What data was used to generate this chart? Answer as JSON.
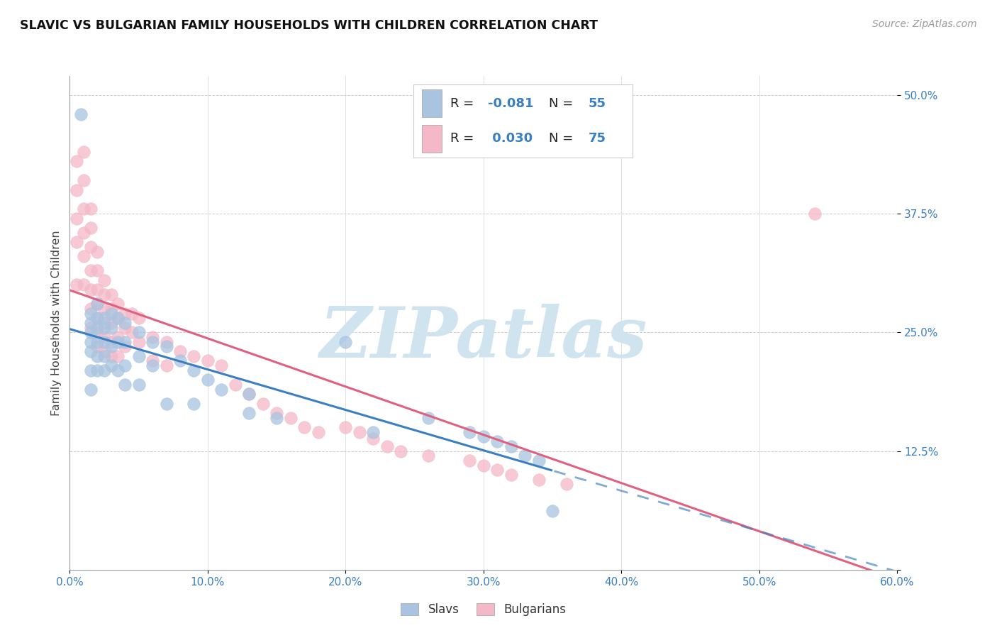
{
  "title": "SLAVIC VS BULGARIAN FAMILY HOUSEHOLDS WITH CHILDREN CORRELATION CHART",
  "source": "Source: ZipAtlas.com",
  "ylabel": "Family Households with Children",
  "xlim": [
    0.0,
    0.6
  ],
  "ylim": [
    0.0,
    0.52
  ],
  "slavs_color": "#a8c4e0",
  "bulgarians_color": "#f4b8c8",
  "slavs_line_color": "#3a7fc1",
  "bulgarians_line_color": "#e06080",
  "watermark_text": "ZIPatlas",
  "watermark_color": "#d0e4f0",
  "slavs_R": -0.081,
  "bulgarians_R": 0.03,
  "slavs_N": 55,
  "bulgarians_N": 75,
  "slavs_x": [
    0.008,
    0.015,
    0.015,
    0.015,
    0.015,
    0.015,
    0.015,
    0.015,
    0.02,
    0.02,
    0.02,
    0.02,
    0.02,
    0.02,
    0.025,
    0.025,
    0.025,
    0.025,
    0.025,
    0.03,
    0.03,
    0.03,
    0.03,
    0.035,
    0.035,
    0.035,
    0.04,
    0.04,
    0.04,
    0.04,
    0.05,
    0.05,
    0.05,
    0.06,
    0.06,
    0.07,
    0.07,
    0.08,
    0.09,
    0.09,
    0.1,
    0.11,
    0.13,
    0.13,
    0.15,
    0.2,
    0.22,
    0.26,
    0.29,
    0.3,
    0.31,
    0.32,
    0.33,
    0.34,
    0.35
  ],
  "slavs_y": [
    0.48,
    0.27,
    0.26,
    0.25,
    0.24,
    0.23,
    0.21,
    0.19,
    0.28,
    0.265,
    0.255,
    0.24,
    0.225,
    0.21,
    0.265,
    0.255,
    0.24,
    0.225,
    0.21,
    0.27,
    0.255,
    0.235,
    0.215,
    0.265,
    0.24,
    0.21,
    0.26,
    0.24,
    0.215,
    0.195,
    0.25,
    0.225,
    0.195,
    0.24,
    0.215,
    0.235,
    0.175,
    0.22,
    0.21,
    0.175,
    0.2,
    0.19,
    0.185,
    0.165,
    0.16,
    0.24,
    0.145,
    0.16,
    0.145,
    0.14,
    0.135,
    0.13,
    0.12,
    0.115,
    0.062
  ],
  "bulgarians_x": [
    0.005,
    0.005,
    0.005,
    0.005,
    0.005,
    0.01,
    0.01,
    0.01,
    0.01,
    0.01,
    0.01,
    0.015,
    0.015,
    0.015,
    0.015,
    0.015,
    0.015,
    0.015,
    0.02,
    0.02,
    0.02,
    0.02,
    0.02,
    0.02,
    0.02,
    0.025,
    0.025,
    0.025,
    0.025,
    0.025,
    0.025,
    0.03,
    0.03,
    0.03,
    0.03,
    0.03,
    0.035,
    0.035,
    0.035,
    0.035,
    0.04,
    0.04,
    0.04,
    0.045,
    0.045,
    0.05,
    0.05,
    0.06,
    0.06,
    0.07,
    0.07,
    0.08,
    0.09,
    0.1,
    0.11,
    0.12,
    0.13,
    0.14,
    0.15,
    0.16,
    0.17,
    0.18,
    0.2,
    0.21,
    0.22,
    0.23,
    0.24,
    0.26,
    0.29,
    0.3,
    0.31,
    0.32,
    0.34,
    0.36,
    0.54
  ],
  "bulgarians_y": [
    0.43,
    0.4,
    0.37,
    0.345,
    0.3,
    0.44,
    0.41,
    0.38,
    0.355,
    0.33,
    0.3,
    0.38,
    0.36,
    0.34,
    0.315,
    0.295,
    0.275,
    0.255,
    0.335,
    0.315,
    0.295,
    0.28,
    0.265,
    0.25,
    0.235,
    0.305,
    0.29,
    0.275,
    0.26,
    0.245,
    0.23,
    0.29,
    0.275,
    0.26,
    0.24,
    0.225,
    0.28,
    0.265,
    0.245,
    0.225,
    0.27,
    0.255,
    0.235,
    0.27,
    0.25,
    0.265,
    0.24,
    0.245,
    0.22,
    0.24,
    0.215,
    0.23,
    0.225,
    0.22,
    0.215,
    0.195,
    0.185,
    0.175,
    0.165,
    0.16,
    0.15,
    0.145,
    0.15,
    0.145,
    0.138,
    0.13,
    0.125,
    0.12,
    0.115,
    0.11,
    0.105,
    0.1,
    0.095,
    0.09,
    0.375
  ]
}
